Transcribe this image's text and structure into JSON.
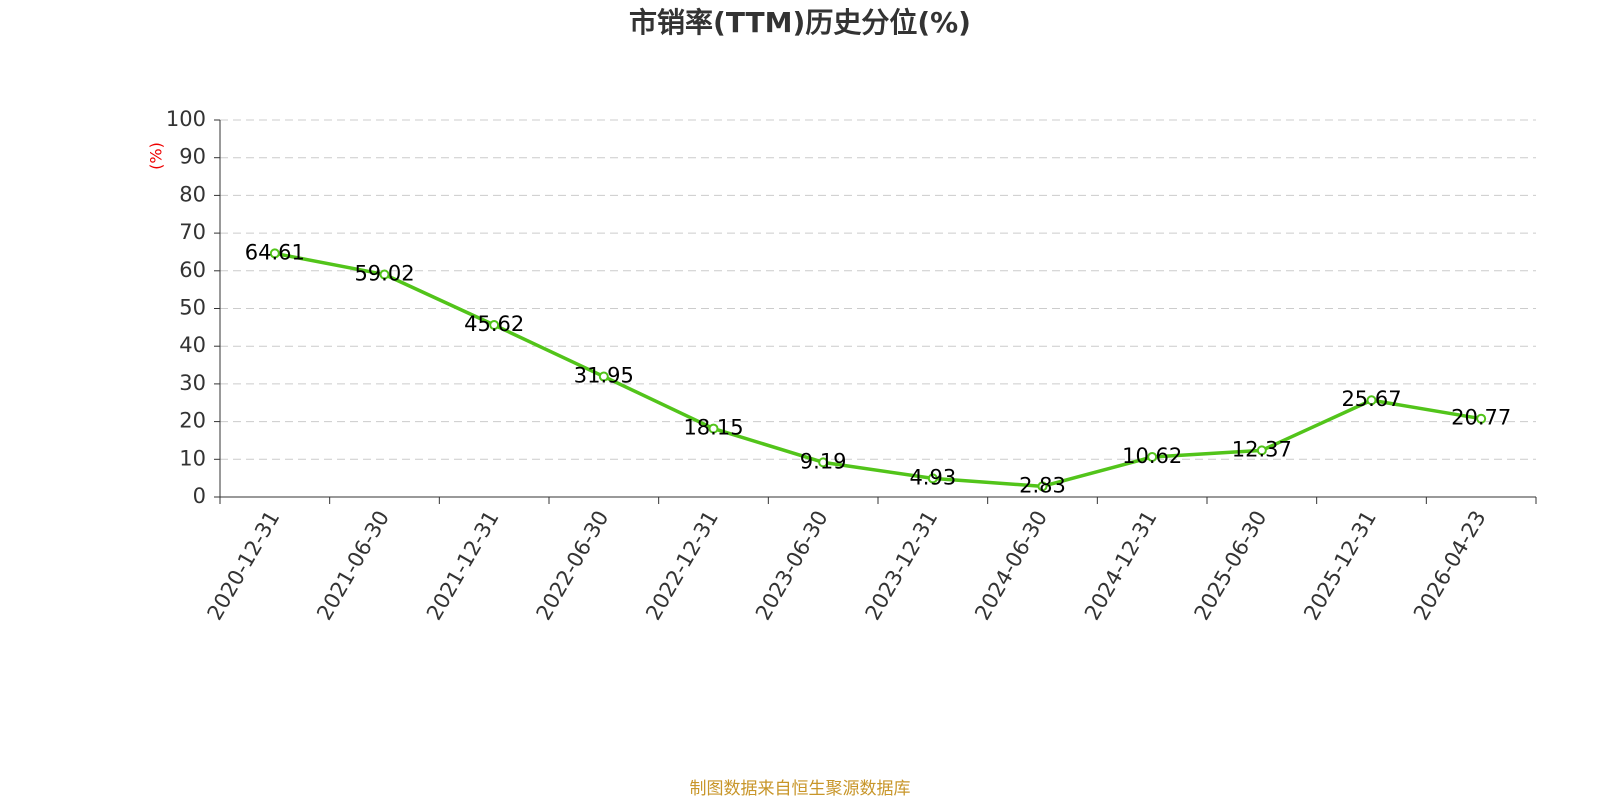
{
  "chart_data": {
    "type": "line",
    "title": "市销率(TTM)历史分位(%)",
    "y_label": "(%)",
    "categories": [
      "2020-12-31",
      "2021-06-30",
      "2021-12-31",
      "2022-06-30",
      "2022-12-31",
      "2023-06-30",
      "2023-12-31",
      "2024-06-30",
      "2024-12-31",
      "2025-06-30",
      "2025-12-31",
      "2026-04-23"
    ],
    "values": [
      64.61,
      59.02,
      45.62,
      31.95,
      18.15,
      9.19,
      4.93,
      2.83,
      10.62,
      12.37,
      25.67,
      20.77
    ],
    "color": "#52c41a",
    "ylim": [
      0,
      100
    ],
    "yticks": [
      0,
      10,
      20,
      30,
      40,
      50,
      60,
      70,
      80,
      90,
      100
    ],
    "grid": true
  },
  "footer": {
    "text": "制图数据来自恒生聚源数据库"
  }
}
